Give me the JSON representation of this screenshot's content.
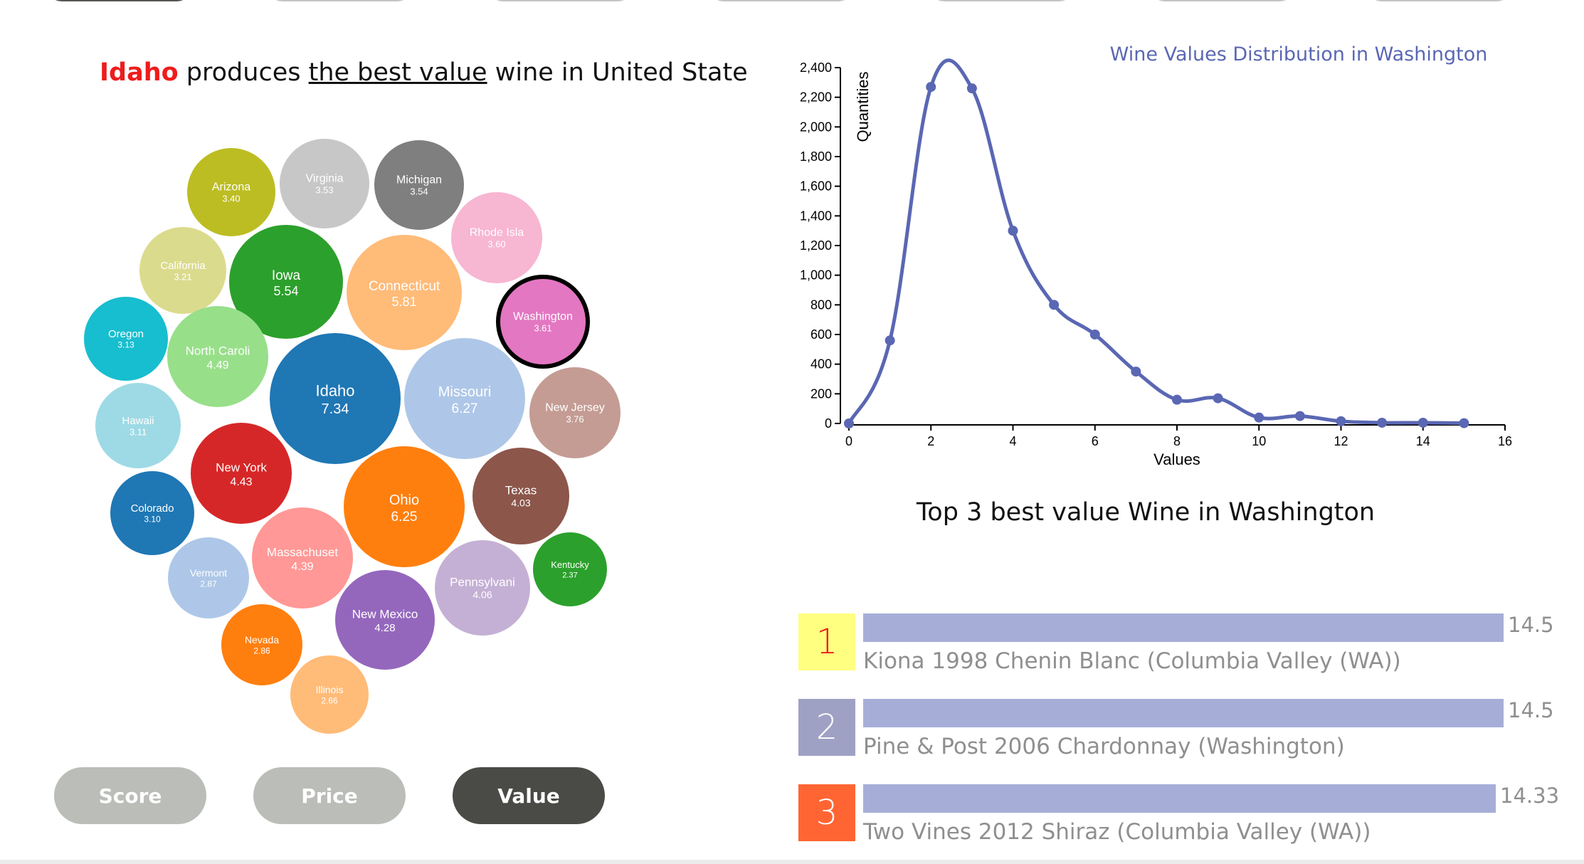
{
  "headline": {
    "state": "Idaho",
    "part1": " produces ",
    "emphasis": "the best value",
    "part2": " wine in United State"
  },
  "states": [
    {
      "name": "Arizona",
      "value": "3.40",
      "color": "#bcbd22"
    },
    {
      "name": "Virginia",
      "value": "3.53",
      "color": "#c7c7c7"
    },
    {
      "name": "Michigan",
      "value": "3.54",
      "color": "#7f7f7f"
    },
    {
      "name": "Rhode Isla",
      "value": "3.60",
      "color": "#f7b6d2"
    },
    {
      "name": "California",
      "value": "3.21",
      "color": "#dbdb8d"
    },
    {
      "name": "Iowa",
      "value": "5.54",
      "color": "#2ca02c"
    },
    {
      "name": "Connecticut",
      "value": "5.81",
      "color": "#ffbb78"
    },
    {
      "name": "Washington",
      "value": "3.61",
      "color": "#e377c2",
      "selected": true
    },
    {
      "name": "Oregon",
      "value": "3.13",
      "color": "#17becf"
    },
    {
      "name": "North Caroli",
      "value": "4.49",
      "color": "#98df8a"
    },
    {
      "name": "Idaho",
      "value": "7.34",
      "color": "#1f77b4"
    },
    {
      "name": "Missouri",
      "value": "6.27",
      "color": "#aec7e8"
    },
    {
      "name": "New Jersey",
      "value": "3.76",
      "color": "#c49c94"
    },
    {
      "name": "Hawaii",
      "value": "3.11",
      "color": "#9edae5"
    },
    {
      "name": "New York",
      "value": "4.43",
      "color": "#d62728"
    },
    {
      "name": "Texas",
      "value": "4.03",
      "color": "#8c564b"
    },
    {
      "name": "Ohio",
      "value": "6.25",
      "color": "#ff7f0e"
    },
    {
      "name": "Colorado",
      "value": "3.10",
      "color": "#1f77b4"
    },
    {
      "name": "Massachuset",
      "value": "4.39",
      "color": "#ff9896"
    },
    {
      "name": "Kentucky",
      "value": "2.37",
      "color": "#2ca02c"
    },
    {
      "name": "Pennsylvani",
      "value": "4.06",
      "color": "#c5b0d5"
    },
    {
      "name": "Vermont",
      "value": "2.87",
      "color": "#aec7e8"
    },
    {
      "name": "New Mexico",
      "value": "4.28",
      "color": "#9467bd"
    },
    {
      "name": "Nevada",
      "value": "2.86",
      "color": "#ff7f0e"
    },
    {
      "name": "Illinois",
      "value": "2.66",
      "color": "#ffbb78"
    }
  ],
  "buttons": {
    "score": "Score",
    "price": "Price",
    "value": "Value",
    "active": "value"
  },
  "chart_data": {
    "type": "line",
    "title": "Wine Values Distribution in Washington",
    "xlabel": "Values",
    "ylabel": "Quantities",
    "xlim": [
      0,
      16
    ],
    "ylim": [
      0,
      2400
    ],
    "x_ticks": [
      0,
      2,
      4,
      6,
      8,
      10,
      12,
      14,
      16
    ],
    "y_ticks": [
      0,
      200,
      400,
      600,
      800,
      1000,
      1200,
      1400,
      1600,
      1800,
      2000,
      2200,
      2400
    ],
    "color": "#5a67b3",
    "x": [
      0,
      1,
      2,
      3,
      4,
      5,
      6,
      7,
      8,
      9,
      10,
      11,
      12,
      13,
      14,
      15
    ],
    "y": [
      0,
      560,
      2270,
      2260,
      1300,
      800,
      600,
      350,
      160,
      170,
      40,
      50,
      15,
      5,
      5,
      2
    ]
  },
  "top3": {
    "title": "Top 3 best value Wine in Washington",
    "items": [
      {
        "rank": "1",
        "score": "14.5",
        "score_value": 14.5,
        "name": "Kiona 1998 Chenin Blanc (Columbia Valley (WA))",
        "box_color": "#ffff80",
        "rank_color": "#ee1c1c"
      },
      {
        "rank": "2",
        "score": "14.5",
        "score_value": 14.5,
        "name": "Pine & Post 2006 Chardonnay (Washington)",
        "box_color": "#9fa1c4",
        "rank_color": "#ffffff"
      },
      {
        "rank": "3",
        "score": "14.33",
        "score_value": 14.33,
        "name": "Two Vines 2012 Shiraz (Columbia Valley (WA))",
        "box_color": "#ff6533",
        "rank_color": "#ffffff"
      }
    ]
  }
}
